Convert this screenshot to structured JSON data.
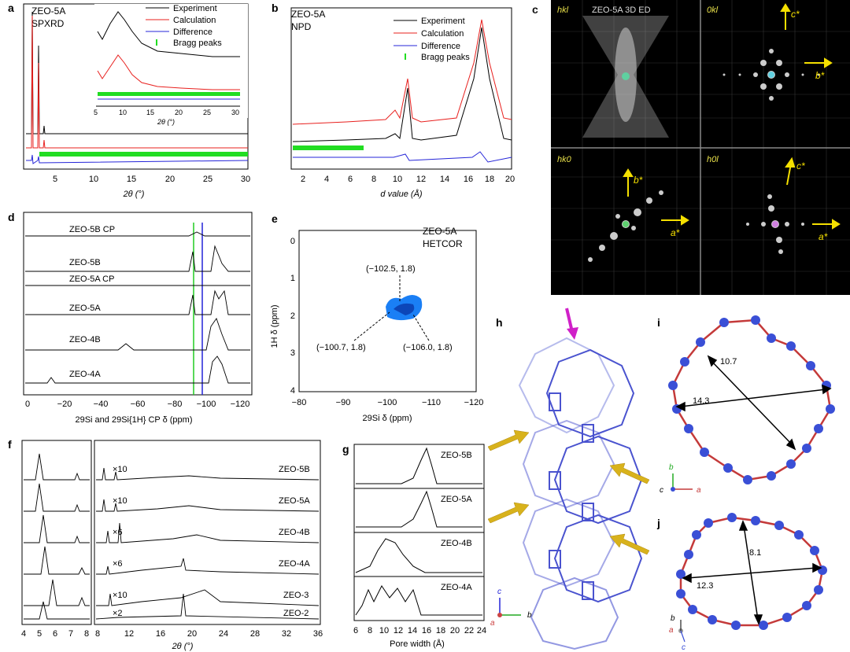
{
  "panels": {
    "a": {
      "letter": "a",
      "title1": "ZEO-5A",
      "title2": "SPXRD",
      "xlabel": "2θ (°)",
      "xticks": [
        "5",
        "10",
        "15",
        "20",
        "25",
        "30"
      ],
      "inset_xlabel": "2θ (°)",
      "inset_xticks": [
        "5",
        "10",
        "15",
        "20",
        "25",
        "30"
      ],
      "legend": [
        "Experiment",
        "Calculation",
        "Difference",
        "Bragg peaks"
      ]
    },
    "b": {
      "letter": "b",
      "title1": "ZEO-5A",
      "title2": "NPD",
      "xlabel": "d value (Å)",
      "xticks": [
        "2",
        "4",
        "6",
        "8",
        "10",
        "12",
        "14",
        "16",
        "18",
        "20"
      ],
      "legend": [
        "Experiment",
        "Calculation",
        "Difference",
        "Bragg peaks"
      ]
    },
    "c": {
      "letter": "c",
      "quads": [
        {
          "tag": "hkl",
          "title": "ZEO-5A 3D ED"
        },
        {
          "tag": "0kl",
          "ax1": "c*",
          "ax2": "b*"
        },
        {
          "tag": "hk0",
          "ax1": "b*",
          "ax2": "a*"
        },
        {
          "tag": "h0l",
          "ax1": "c*",
          "ax2": "a*"
        }
      ]
    },
    "d": {
      "letter": "d",
      "traces": [
        "ZEO-5B CP",
        "ZEO-5B",
        "ZEO-5A CP",
        "ZEO-5A",
        "ZEO-4B",
        "ZEO-4A"
      ],
      "xticks": [
        "0",
        "−20",
        "−40",
        "−60",
        "−80",
        "−100",
        "−120"
      ],
      "xlabel": "29Si and 29Si{1H} CP δ (ppm)"
    },
    "e": {
      "letter": "e",
      "title1": "ZEO-5A",
      "title2": "HETCOR",
      "yticks": [
        "0",
        "1",
        "2",
        "3",
        "4"
      ],
      "xticks": [
        "−80",
        "−90",
        "−100",
        "−110",
        "−120"
      ],
      "ylabel": "1H δ (ppm)",
      "xlabel": "29Si δ (ppm)",
      "ann1": "(−102.5, 1.8)",
      "ann2": "(−100.7, 1.8)",
      "ann3": "(−106.0, 1.8)"
    },
    "f": {
      "letter": "f",
      "samples": [
        "ZEO-5B",
        "ZEO-5A",
        "ZEO-4B",
        "ZEO-4A",
        "ZEO-3",
        "ZEO-2"
      ],
      "mult": [
        "×10",
        "×10",
        "×6",
        "×6",
        "×10",
        "×2"
      ],
      "xticks": [
        "4",
        "5",
        "6",
        "7",
        "8",
        "8",
        "12",
        "16",
        "20",
        "24",
        "28",
        "32",
        "36"
      ],
      "xlabel": "2θ (°)"
    },
    "g": {
      "letter": "g",
      "samples": [
        "ZEO-5B",
        "ZEO-5A",
        "ZEO-4B",
        "ZEO-4A"
      ],
      "xticks": [
        "6",
        "8",
        "10",
        "12",
        "14",
        "16",
        "18",
        "20",
        "22",
        "24"
      ],
      "xlabel": "Pore width (Å)"
    },
    "h": {
      "letter": "h",
      "axes": [
        "c",
        "b",
        "a"
      ]
    },
    "i": {
      "letter": "i",
      "d1": "10.7",
      "d2": "14.3",
      "axes": [
        "b",
        "c",
        "a"
      ]
    },
    "j": {
      "letter": "j",
      "d1": "8.1",
      "d2": "12.3",
      "axes": [
        "b",
        "a",
        "c"
      ]
    }
  },
  "colors": {
    "experiment": "#000000",
    "calculation": "#e8201e",
    "difference": "#2424d8",
    "bragg": "#22dd22",
    "si_blue": "#3a4fd6",
    "o_red": "#c43a3a",
    "arrow_gold": "#d8b21c"
  }
}
